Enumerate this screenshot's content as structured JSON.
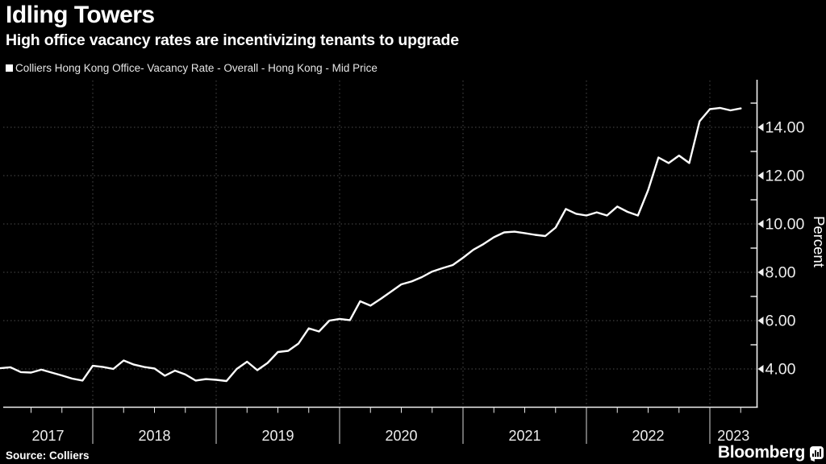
{
  "header": {
    "title": "Idling Towers",
    "subtitle": "High office vacancy rates are incentivizing tenants to upgrade"
  },
  "legend": {
    "label": "Colliers Hong Kong Office- Vacancy Rate - Overall - Hong Kong - Mid Price",
    "marker_color": "#ffffff"
  },
  "chart_data": {
    "type": "line",
    "title": "Idling Towers",
    "xlabel": "",
    "ylabel": "Percent",
    "ylim": [
      2.4,
      15.9
    ],
    "yticks_major": [
      4,
      6,
      8,
      10,
      12,
      14
    ],
    "yticks_minor": [
      5,
      7,
      9,
      11,
      13,
      15
    ],
    "xticks_years": [
      2017,
      2018,
      2019,
      2020,
      2021,
      2022,
      2023
    ],
    "grid": "dotted",
    "legend_position": "top-left",
    "line_color": "#ffffff",
    "series": [
      {
        "name": "Colliers Hong Kong Office- Vacancy Rate - Overall - Hong Kong - Mid Price",
        "points": [
          {
            "date": "2017-04",
            "value": 4.03
          },
          {
            "date": "2017-05",
            "value": 4.07
          },
          {
            "date": "2017-06",
            "value": 3.87
          },
          {
            "date": "2017-07",
            "value": 3.85
          },
          {
            "date": "2017-08",
            "value": 3.97
          },
          {
            "date": "2017-09",
            "value": 3.85
          },
          {
            "date": "2017-10",
            "value": 3.73
          },
          {
            "date": "2017-11",
            "value": 3.6
          },
          {
            "date": "2017-12",
            "value": 3.52
          },
          {
            "date": "2018-01",
            "value": 4.13
          },
          {
            "date": "2018-02",
            "value": 4.08
          },
          {
            "date": "2018-03",
            "value": 4.0
          },
          {
            "date": "2018-04",
            "value": 4.35
          },
          {
            "date": "2018-05",
            "value": 4.18
          },
          {
            "date": "2018-06",
            "value": 4.08
          },
          {
            "date": "2018-07",
            "value": 4.02
          },
          {
            "date": "2018-08",
            "value": 3.72
          },
          {
            "date": "2018-09",
            "value": 3.93
          },
          {
            "date": "2018-10",
            "value": 3.77
          },
          {
            "date": "2018-11",
            "value": 3.52
          },
          {
            "date": "2018-12",
            "value": 3.58
          },
          {
            "date": "2019-01",
            "value": 3.55
          },
          {
            "date": "2019-02",
            "value": 3.5
          },
          {
            "date": "2019-03",
            "value": 4.0
          },
          {
            "date": "2019-04",
            "value": 4.3
          },
          {
            "date": "2019-05",
            "value": 3.95
          },
          {
            "date": "2019-06",
            "value": 4.25
          },
          {
            "date": "2019-07",
            "value": 4.7
          },
          {
            "date": "2019-08",
            "value": 4.75
          },
          {
            "date": "2019-09",
            "value": 5.05
          },
          {
            "date": "2019-10",
            "value": 5.68
          },
          {
            "date": "2019-11",
            "value": 5.55
          },
          {
            "date": "2019-12",
            "value": 6.0
          },
          {
            "date": "2020-01",
            "value": 6.07
          },
          {
            "date": "2020-02",
            "value": 6.02
          },
          {
            "date": "2020-03",
            "value": 6.8
          },
          {
            "date": "2020-04",
            "value": 6.62
          },
          {
            "date": "2020-05",
            "value": 6.9
          },
          {
            "date": "2020-06",
            "value": 7.2
          },
          {
            "date": "2020-07",
            "value": 7.5
          },
          {
            "date": "2020-08",
            "value": 7.62
          },
          {
            "date": "2020-09",
            "value": 7.8
          },
          {
            "date": "2020-10",
            "value": 8.03
          },
          {
            "date": "2020-11",
            "value": 8.17
          },
          {
            "date": "2020-12",
            "value": 8.3
          },
          {
            "date": "2021-01",
            "value": 8.6
          },
          {
            "date": "2021-02",
            "value": 8.93
          },
          {
            "date": "2021-03",
            "value": 9.17
          },
          {
            "date": "2021-04",
            "value": 9.45
          },
          {
            "date": "2021-05",
            "value": 9.65
          },
          {
            "date": "2021-06",
            "value": 9.68
          },
          {
            "date": "2021-07",
            "value": 9.62
          },
          {
            "date": "2021-08",
            "value": 9.55
          },
          {
            "date": "2021-09",
            "value": 9.5
          },
          {
            "date": "2021-10",
            "value": 9.85
          },
          {
            "date": "2021-11",
            "value": 10.62
          },
          {
            "date": "2021-12",
            "value": 10.42
          },
          {
            "date": "2022-01",
            "value": 10.35
          },
          {
            "date": "2022-02",
            "value": 10.48
          },
          {
            "date": "2022-03",
            "value": 10.35
          },
          {
            "date": "2022-04",
            "value": 10.72
          },
          {
            "date": "2022-05",
            "value": 10.5
          },
          {
            "date": "2022-06",
            "value": 10.35
          },
          {
            "date": "2022-07",
            "value": 11.4
          },
          {
            "date": "2022-08",
            "value": 12.75
          },
          {
            "date": "2022-09",
            "value": 12.52
          },
          {
            "date": "2022-10",
            "value": 12.83
          },
          {
            "date": "2022-11",
            "value": 12.52
          },
          {
            "date": "2022-12",
            "value": 14.25
          },
          {
            "date": "2023-01",
            "value": 14.75
          },
          {
            "date": "2023-02",
            "value": 14.8
          },
          {
            "date": "2023-03",
            "value": 14.7
          },
          {
            "date": "2023-04",
            "value": 14.78
          }
        ]
      }
    ]
  },
  "footer": {
    "source": "Source: Colliers",
    "brand": "Bloomberg"
  },
  "colors": {
    "background": "#000000",
    "text": "#ffffff",
    "axis": "#f2f2f2",
    "tick_label": "#ededed",
    "grid": "#4d4d4d",
    "line": "#ffffff"
  }
}
